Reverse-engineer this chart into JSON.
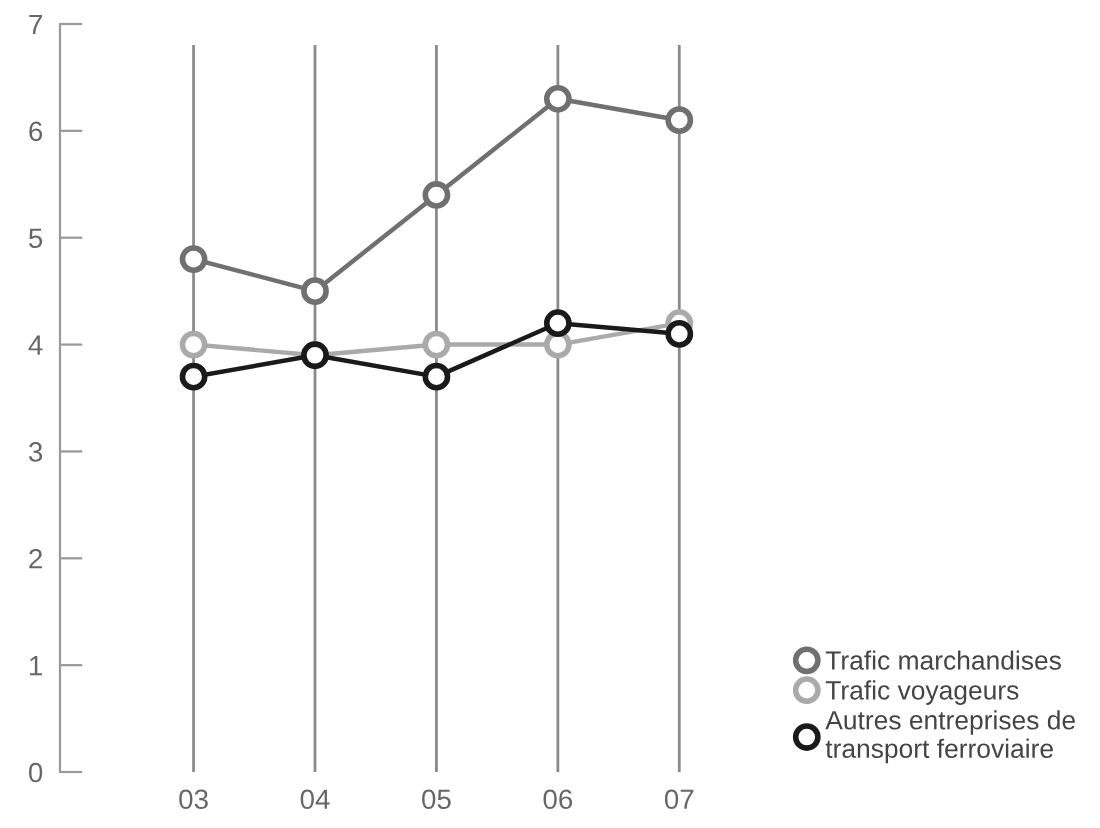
{
  "chart_data": {
    "type": "line",
    "categories": [
      "03",
      "04",
      "05",
      "06",
      "07"
    ],
    "series": [
      {
        "name": "Trafic marchandises",
        "color": "#707070",
        "values": [
          4.8,
          4.5,
          5.4,
          6.3,
          6.1
        ]
      },
      {
        "name": "Trafic voyageurs",
        "color": "#aaaaaa",
        "values": [
          4.0,
          3.9,
          4.0,
          4.0,
          4.2
        ]
      },
      {
        "name": "Autres entreprises de\ntransport ferroviaire",
        "color": "#1a1a1a",
        "values": [
          3.7,
          3.9,
          3.7,
          4.2,
          4.1
        ]
      }
    ],
    "ylim": [
      0,
      7
    ],
    "yticks": [
      0,
      1,
      2,
      3,
      4,
      5,
      6,
      7
    ],
    "grid": "x",
    "legend": "bottom right",
    "marker": "circle",
    "line_style": "solid"
  }
}
